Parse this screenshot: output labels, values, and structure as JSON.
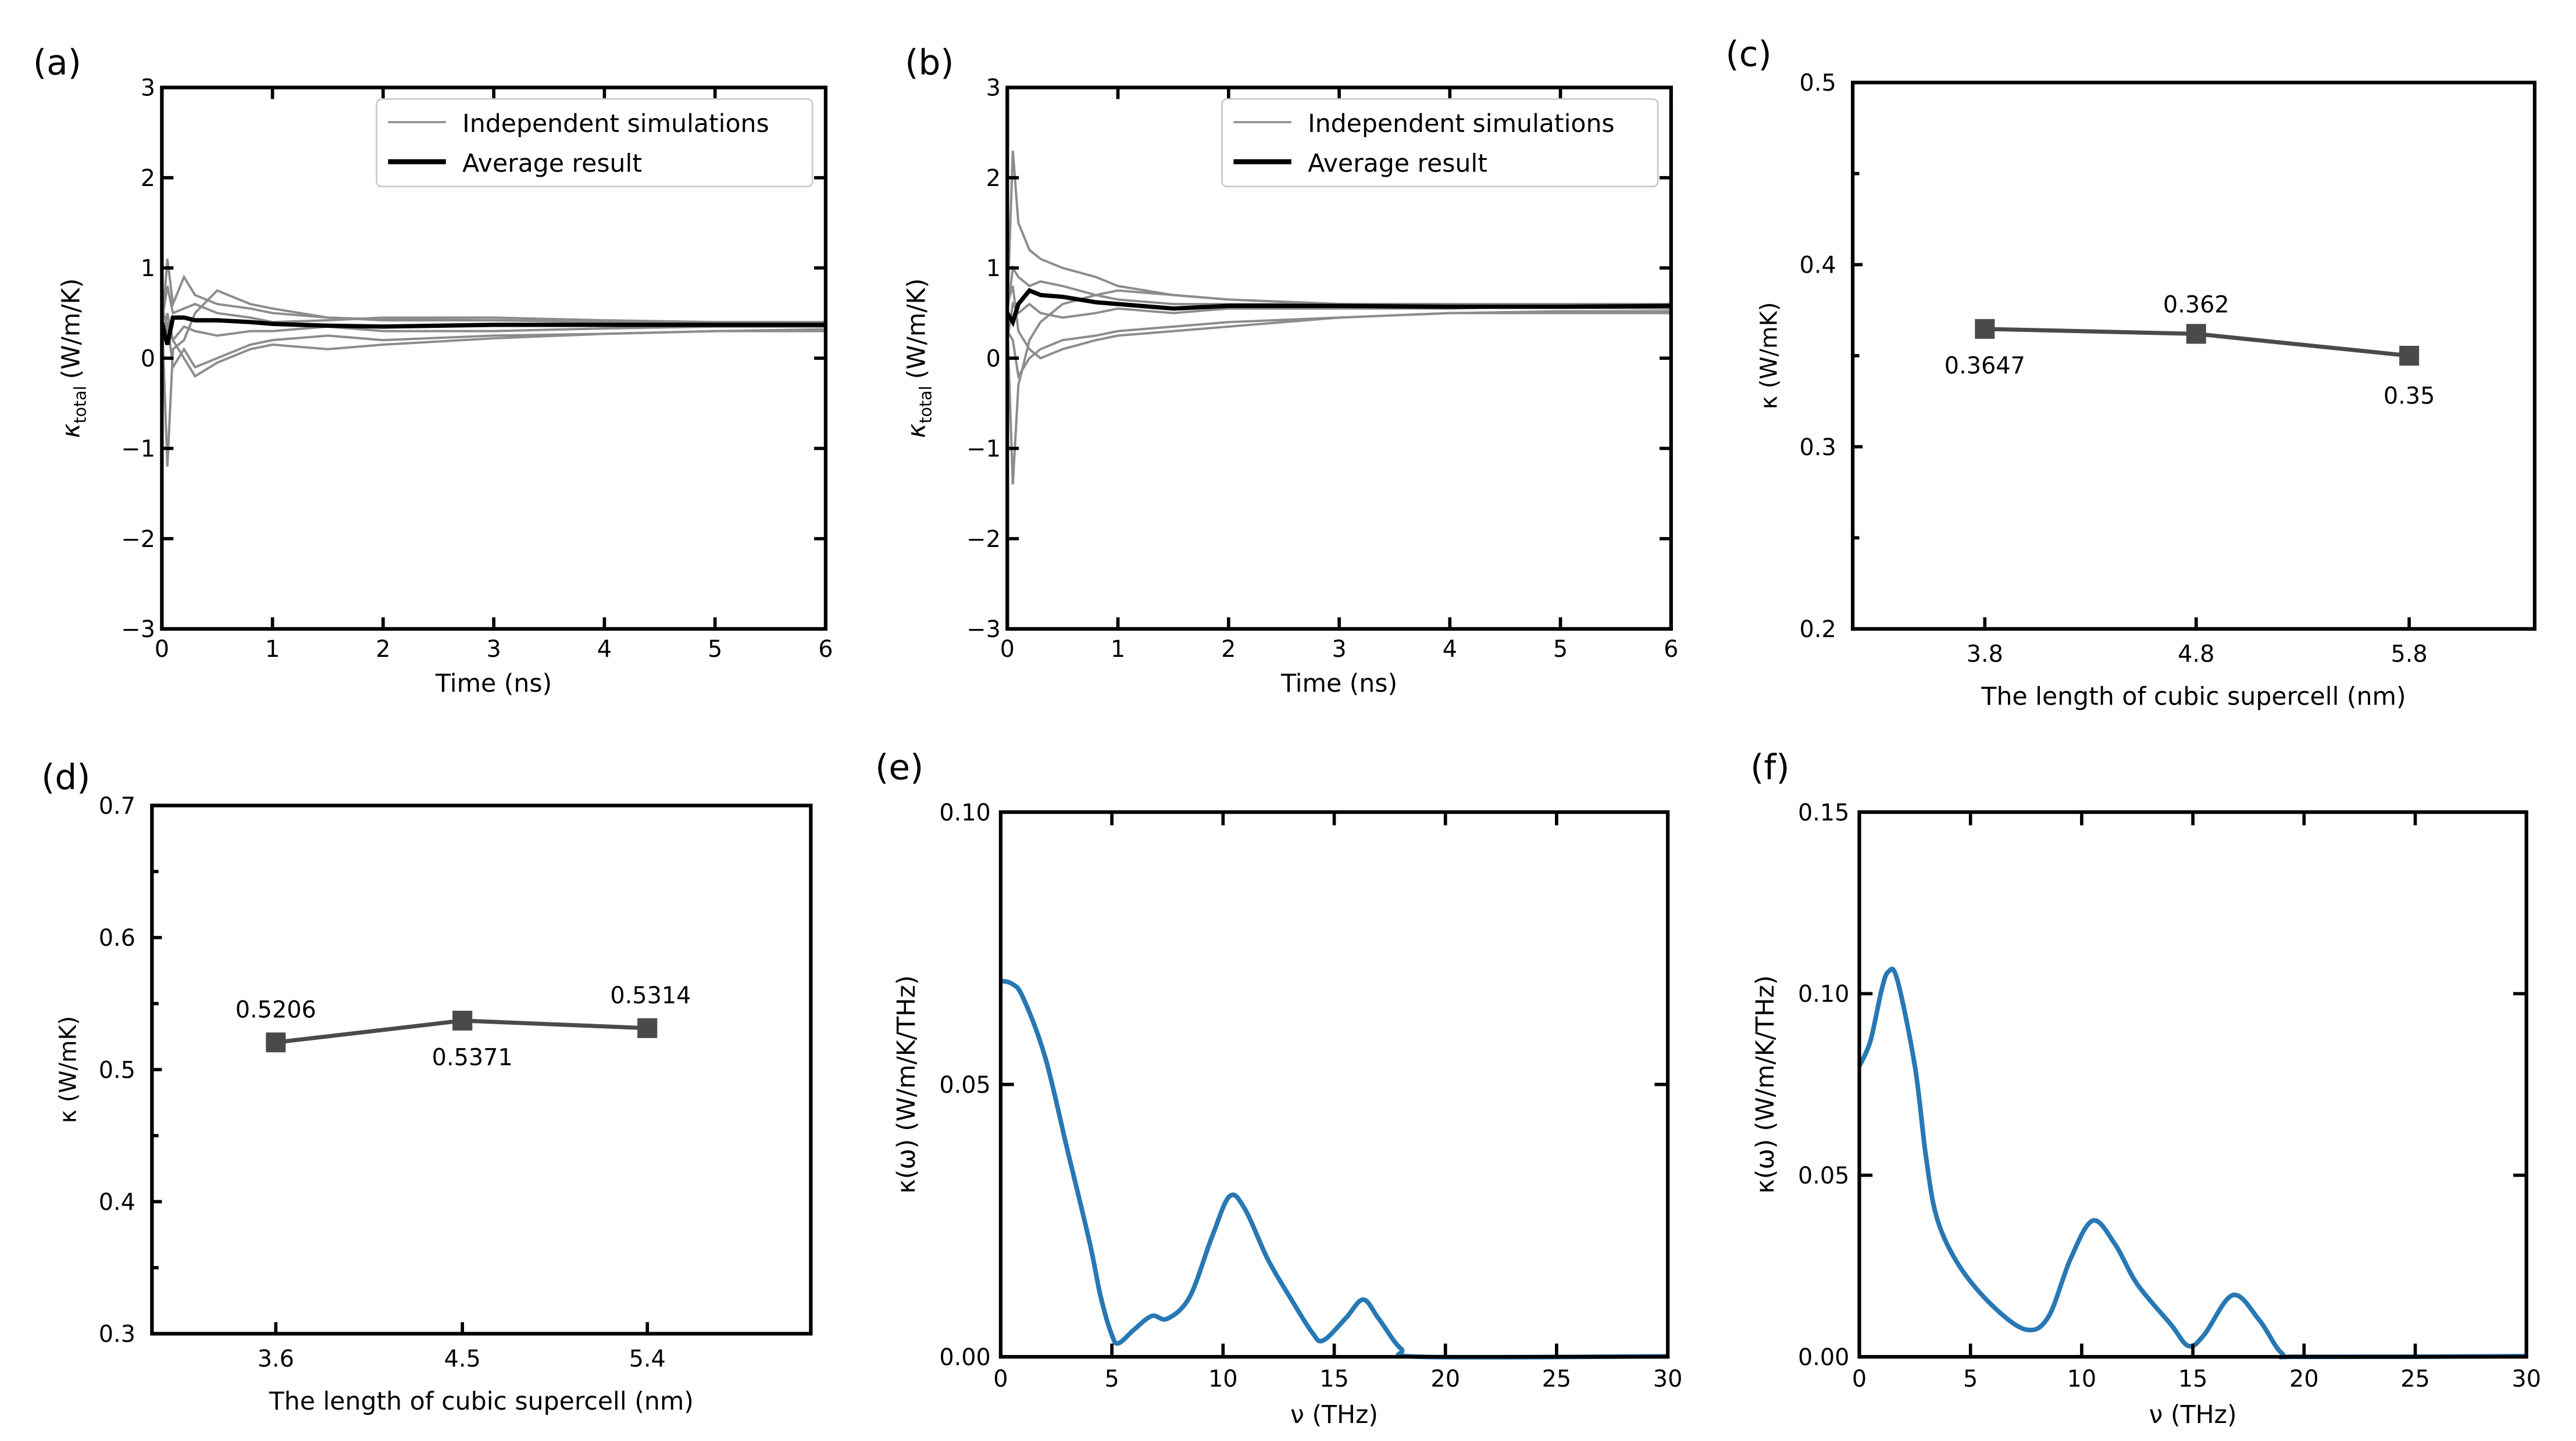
{
  "colors": {
    "simulation": "#8c8c8c",
    "average": "#000000",
    "marker": "#4a4a4a",
    "spectrum": "#2878b4"
  },
  "chart_data": [
    {
      "panel": "(a)",
      "type": "line",
      "xlabel": "Time (ns)",
      "ylabel": "κ_total (W/m/K)",
      "ylabel_main": "κ",
      "ylabel_sub": "total",
      "ylabel_unit": "(W/m/K)",
      "xlim": [
        0,
        6
      ],
      "ylim": [
        -3,
        3
      ],
      "xticks": [
        "0",
        "1",
        "2",
        "3",
        "4",
        "5",
        "6"
      ],
      "yticks": [
        "−3",
        "−2",
        "−1",
        "0",
        "1",
        "2",
        "3"
      ],
      "legend": {
        "position": "top-right",
        "entries": [
          "Independent simulations",
          "Average result"
        ]
      },
      "x": [
        0,
        0.05,
        0.1,
        0.2,
        0.3,
        0.5,
        0.8,
        1,
        1.5,
        2,
        3,
        4,
        5,
        6
      ],
      "simulations": [
        [
          0.3,
          1.1,
          0.6,
          0.9,
          0.7,
          0.6,
          0.55,
          0.5,
          0.45,
          0.42,
          0.42,
          0.4,
          0.4,
          0.4
        ],
        [
          0.5,
          -1.2,
          0.1,
          0.2,
          0.5,
          0.75,
          0.6,
          0.55,
          0.45,
          0.43,
          0.42,
          0.41,
          0.4,
          0.38
        ],
        [
          0.2,
          0.4,
          -0.1,
          0.1,
          -0.1,
          0.0,
          0.15,
          0.2,
          0.25,
          0.2,
          0.25,
          0.27,
          0.3,
          0.32
        ],
        [
          0.6,
          0.3,
          0.2,
          0.0,
          -0.2,
          -0.05,
          0.1,
          0.15,
          0.1,
          0.15,
          0.22,
          0.27,
          0.3,
          0.3
        ],
        [
          0.4,
          0.8,
          0.5,
          0.55,
          0.6,
          0.5,
          0.45,
          0.4,
          0.42,
          0.45,
          0.45,
          0.42,
          0.4,
          0.4
        ],
        [
          0.1,
          0.5,
          0.2,
          0.35,
          0.3,
          0.25,
          0.3,
          0.3,
          0.35,
          0.3,
          0.3,
          0.33,
          0.35,
          0.35
        ]
      ],
      "average": [
        0.4,
        0.15,
        0.45,
        0.45,
        0.42,
        0.42,
        0.4,
        0.38,
        0.36,
        0.35,
        0.37,
        0.37,
        0.37,
        0.37
      ]
    },
    {
      "panel": "(b)",
      "type": "line",
      "xlabel": "Time (ns)",
      "ylabel": "κ_total (W/m/K)",
      "ylabel_main": "κ",
      "ylabel_sub": "total",
      "ylabel_unit": "(W/m/K)",
      "xlim": [
        0,
        6
      ],
      "ylim": [
        -3,
        3
      ],
      "xticks": [
        "0",
        "1",
        "2",
        "3",
        "4",
        "5",
        "6"
      ],
      "yticks": [
        "−3",
        "−2",
        "−1",
        "0",
        "1",
        "2",
        "3"
      ],
      "legend": {
        "position": "top-right",
        "entries": [
          "Independent simulations",
          "Average result"
        ]
      },
      "x": [
        0,
        0.05,
        0.1,
        0.2,
        0.3,
        0.5,
        0.8,
        1,
        1.5,
        2,
        3,
        4,
        5,
        6
      ],
      "simulations": [
        [
          0.5,
          2.3,
          1.5,
          1.2,
          1.1,
          1.0,
          0.9,
          0.8,
          0.7,
          0.65,
          0.6,
          0.58,
          0.56,
          0.55
        ],
        [
          0.4,
          -1.4,
          -0.3,
          0.2,
          0.4,
          0.6,
          0.7,
          0.75,
          0.7,
          0.65,
          0.6,
          0.6,
          0.58,
          0.58
        ],
        [
          0.3,
          0.2,
          -0.2,
          0.0,
          0.1,
          0.2,
          0.25,
          0.3,
          0.35,
          0.4,
          0.45,
          0.5,
          0.52,
          0.52
        ],
        [
          0.6,
          0.8,
          0.3,
          0.1,
          0.0,
          0.1,
          0.2,
          0.25,
          0.3,
          0.35,
          0.45,
          0.5,
          0.5,
          0.5
        ],
        [
          0.5,
          1.0,
          0.9,
          0.8,
          0.85,
          0.8,
          0.7,
          0.65,
          0.6,
          0.6,
          0.6,
          0.6,
          0.6,
          0.6
        ],
        [
          0.2,
          0.6,
          0.5,
          0.6,
          0.5,
          0.45,
          0.5,
          0.55,
          0.5,
          0.55,
          0.55,
          0.55,
          0.58,
          0.6
        ]
      ],
      "average": [
        0.5,
        0.4,
        0.6,
        0.75,
        0.7,
        0.68,
        0.62,
        0.6,
        0.55,
        0.58,
        0.58,
        0.57,
        0.57,
        0.58
      ]
    },
    {
      "panel": "(c)",
      "type": "line",
      "xlabel": "The length of cubic supercell (nm)",
      "ylabel": "κ (W/mK)",
      "categories": [
        "3.8",
        "4.8",
        "5.8"
      ],
      "values": [
        0.3647,
        0.362,
        0.35
      ],
      "data_labels": [
        "0.3647",
        "0.362",
        "0.35"
      ],
      "ylim": [
        0.2,
        0.5
      ],
      "yticks": [
        "0.2",
        "0.3",
        "0.4",
        "0.5"
      ]
    },
    {
      "panel": "(d)",
      "type": "line",
      "xlabel": "The length of cubic supercell (nm)",
      "ylabel": "κ (W/mK)",
      "categories": [
        "3.6",
        "4.5",
        "5.4"
      ],
      "values": [
        0.5206,
        0.5371,
        0.5314
      ],
      "data_labels": [
        "0.5206",
        "0.5371",
        "0.5314"
      ],
      "ylim": [
        0.3,
        0.7
      ],
      "yticks": [
        "0.3",
        "0.4",
        "0.5",
        "0.6",
        "0.7"
      ]
    },
    {
      "panel": "(e)",
      "type": "line",
      "xlabel": "ν (THz)",
      "ylabel": "κ(ω) (W/m/K/THz)",
      "xlim": [
        0,
        30
      ],
      "ylim": [
        0,
        0.1
      ],
      "xticks": [
        "0",
        "5",
        "10",
        "15",
        "20",
        "25",
        "30"
      ],
      "yticks": [
        "0.00",
        "0.05",
        "0.10"
      ],
      "x": [
        0,
        0.5,
        1,
        2,
        3,
        4,
        4.5,
        5,
        5.3,
        6,
        6.8,
        7.5,
        8.5,
        9.5,
        10.3,
        11,
        12,
        13,
        14,
        14.5,
        15.5,
        16.3,
        17,
        18,
        19,
        30
      ],
      "y": [
        0.069,
        0.0685,
        0.066,
        0.055,
        0.038,
        0.021,
        0.011,
        0.004,
        0.0025,
        0.005,
        0.0075,
        0.007,
        0.011,
        0.022,
        0.0295,
        0.027,
        0.018,
        0.011,
        0.0045,
        0.003,
        0.007,
        0.0105,
        0.007,
        0.0015,
        0,
        0.0001
      ]
    },
    {
      "panel": "(f)",
      "type": "line",
      "xlabel": "ν (THz)",
      "ylabel": "κ(ω) (W/m/K/THz)",
      "xlim": [
        0,
        30
      ],
      "ylim": [
        0,
        0.15
      ],
      "xticks": [
        "0",
        "5",
        "10",
        "15",
        "20",
        "25",
        "30"
      ],
      "yticks": [
        "0.00",
        "0.05",
        "0.10",
        "0.15"
      ],
      "x": [
        0,
        0.5,
        1,
        1.3,
        1.7,
        2.5,
        3,
        3.5,
        4.5,
        6,
        7.5,
        8.5,
        9.5,
        10.5,
        11.5,
        12.5,
        14,
        14.8,
        15.5,
        16.8,
        18,
        19,
        20,
        30
      ],
      "y": [
        0.08,
        0.087,
        0.101,
        0.106,
        0.104,
        0.08,
        0.055,
        0.038,
        0.025,
        0.014,
        0.0075,
        0.011,
        0.027,
        0.0375,
        0.031,
        0.02,
        0.009,
        0.003,
        0.006,
        0.017,
        0.01,
        0.001,
        0,
        0.0002
      ]
    }
  ]
}
